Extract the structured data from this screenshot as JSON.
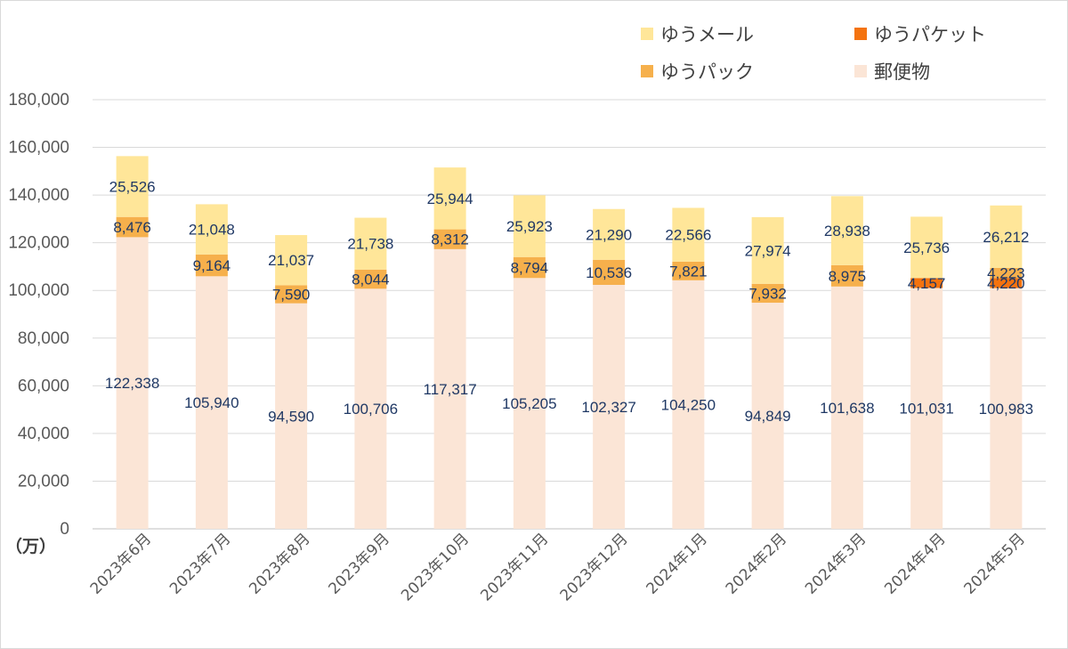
{
  "chart_data": {
    "type": "bar",
    "stacked": true,
    "unit_label": "（万）",
    "categories": [
      "2023年6月",
      "2023年7月",
      "2023年8月",
      "2023年9月",
      "2023年10月",
      "2023年11月",
      "2023年12月",
      "2024年1月",
      "2024年2月",
      "2024年3月",
      "2024年4月",
      "2024年5月"
    ],
    "ylim": [
      0,
      180000
    ],
    "yticks": [
      "0",
      "20,000",
      "40,000",
      "60,000",
      "80,000",
      "100,000",
      "120,000",
      "140,000",
      "160,000",
      "180,000"
    ],
    "grid": true,
    "legend_position": "top-right",
    "series": [
      {
        "name": "郵便物",
        "color": "#fbe5d6",
        "values": [
          122338,
          105940,
          94590,
          100706,
          117317,
          105205,
          102327,
          104250,
          94849,
          101638,
          101031,
          100983
        ],
        "labels": [
          "122,338",
          "105,940",
          "94,590",
          "100,706",
          "117,317",
          "105,205",
          "102,327",
          "104,250",
          "94,849",
          "101,638",
          "101,031",
          "100,983"
        ]
      },
      {
        "name": "ゆうパケット",
        "color": "#f4730f",
        "values": [
          0,
          0,
          0,
          0,
          0,
          0,
          0,
          0,
          0,
          0,
          4157,
          4220
        ],
        "labels": [
          "",
          "",
          "",
          "",
          "",
          "",
          "",
          "",
          "",
          "",
          "4,157",
          "4,220"
        ]
      },
      {
        "name": "ゆうパック",
        "color": "#f6b04c",
        "values": [
          8476,
          9164,
          7590,
          8044,
          8312,
          8794,
          10536,
          7821,
          7932,
          8975,
          0,
          4223
        ],
        "labels": [
          "8,476",
          "9,164",
          "7,590",
          "8,044",
          "8,312",
          "8,794",
          "10,536",
          "7,821",
          "7,932",
          "8,975",
          "",
          "4,223"
        ]
      },
      {
        "name": "ゆうメール",
        "color": "#ffe699",
        "values": [
          25526,
          21048,
          21037,
          21738,
          25944,
          25923,
          21290,
          22566,
          27974,
          28938,
          25736,
          26212
        ],
        "labels": [
          "25,526",
          "21,048",
          "21,037",
          "21,738",
          "25,944",
          "25,923",
          "21,290",
          "22,566",
          "27,974",
          "28,938",
          "25,736",
          "26,212"
        ]
      }
    ],
    "legend": [
      {
        "name": "ゆうメール",
        "color": "#ffe699"
      },
      {
        "name": "ゆうパケット",
        "color": "#f4730f"
      },
      {
        "name": "ゆうパック",
        "color": "#f6b04c"
      },
      {
        "name": "郵便物",
        "color": "#fbe5d6"
      }
    ]
  }
}
